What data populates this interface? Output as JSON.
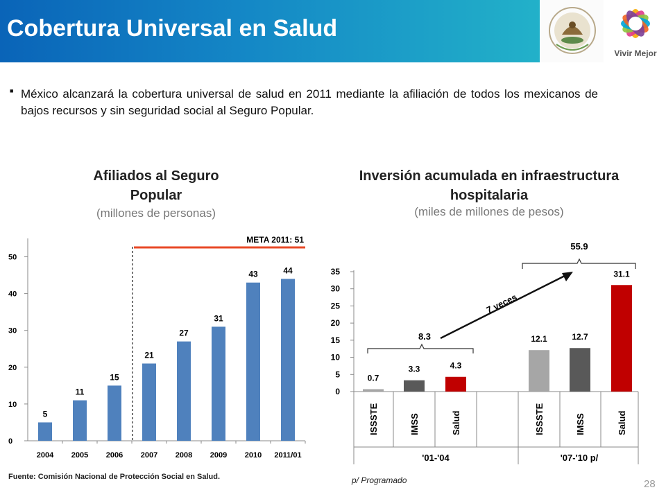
{
  "header": {
    "title": "Cobertura Universal en Salud",
    "logo_text": "Vivir Mejor",
    "seal_text": "ESTADOS UNIDOS MEXICANOS",
    "brand_colors": {
      "header_start": "#0a64b8",
      "header_end": "#22b1c9"
    }
  },
  "intro": {
    "text": "México alcanzará la cobertura universal de salud en 2011 mediante la afiliación de todos los mexicanos de bajos recursos y sin seguridad social al Seguro Popular."
  },
  "left_chart": {
    "title": "Afiliados al Seguro Popular",
    "subtitle": "(millones de personas)",
    "meta_label": "META 2011: 51"
  },
  "right_chart": {
    "title": "Inversión acumulada en infraestructura hospitalaria",
    "subtitle": "(miles de millones de pesos)",
    "arrow_label": "7 veces",
    "group_totals": [
      "8.3",
      "55.9"
    ]
  },
  "footer": {
    "source": "Fuente: Comisión Nacional de Protección Social en Salud.",
    "note": "p/ Programado",
    "page_number": "28"
  },
  "chart_data": [
    {
      "type": "bar",
      "categories": [
        "2004",
        "2005",
        "2006",
        "2007",
        "2008",
        "2009",
        "2010",
        "2011/01"
      ],
      "values": [
        5,
        11,
        15,
        21,
        27,
        31,
        43,
        44
      ],
      "ylim": [
        0,
        55
      ],
      "yticks": [
        0,
        10,
        20,
        30,
        40,
        50
      ],
      "target": 51,
      "colors": {
        "bar": "#4f81bd",
        "target_line": "#e84a27"
      }
    },
    {
      "type": "bar",
      "groups": [
        "'01-'04",
        "'07-'10 p/"
      ],
      "categories": [
        "ISSSTE",
        "IMSS",
        "Salud",
        "ISSSTE",
        "IMSS",
        "Salud"
      ],
      "values": [
        0.7,
        3.3,
        4.3,
        12.1,
        12.7,
        31.1
      ],
      "ylim": [
        0,
        35
      ],
      "yticks": [
        0,
        5,
        10,
        15,
        20,
        25,
        30,
        35
      ],
      "colors": {
        "ISSSTE": "#a6a6a6",
        "IMSS": "#595959",
        "Salud": "#c00000"
      }
    }
  ]
}
